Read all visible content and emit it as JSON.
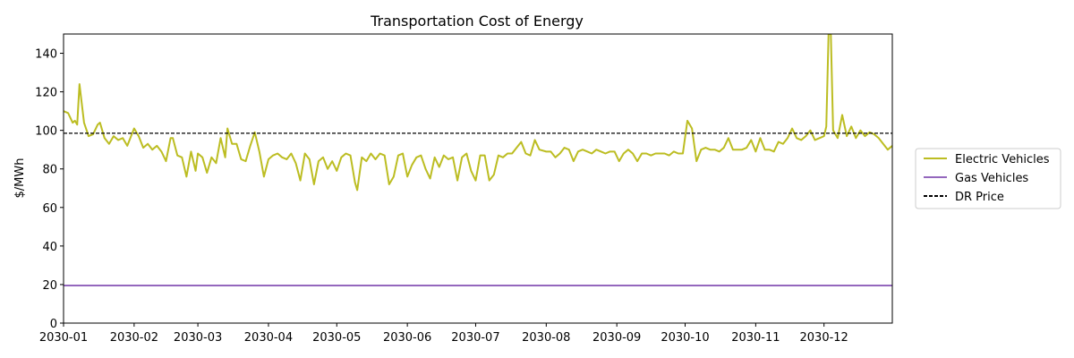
{
  "chart_data": {
    "type": "line",
    "title": "Transportation Cost of Energy",
    "xlabel": "",
    "ylabel": "$/MWh",
    "xlim": [
      "2030-01-01",
      "2030-12-31"
    ],
    "ylim": [
      0,
      150
    ],
    "yticks": [
      0,
      20,
      40,
      60,
      80,
      100,
      120,
      140
    ],
    "xticks": [
      "2030-01",
      "2030-02",
      "2030-03",
      "2030-04",
      "2030-05",
      "2030-06",
      "2030-07",
      "2030-08",
      "2030-09",
      "2030-10",
      "2030-11",
      "2030-12"
    ],
    "grid": false,
    "legend_position": "outside-right",
    "series": [
      {
        "name": "Electric Vehicles",
        "color": "#bcbd22",
        "style": "solid",
        "points": [
          [
            "2030-01-01",
            110
          ],
          [
            "2030-01-03",
            109
          ],
          [
            "2030-01-05",
            104
          ],
          [
            "2030-01-06",
            105
          ],
          [
            "2030-01-07",
            103
          ],
          [
            "2030-01-08",
            124
          ],
          [
            "2030-01-10",
            104
          ],
          [
            "2030-01-12",
            97
          ],
          [
            "2030-01-14",
            98
          ],
          [
            "2030-01-16",
            103
          ],
          [
            "2030-01-17",
            104
          ],
          [
            "2030-01-19",
            96
          ],
          [
            "2030-01-21",
            93
          ],
          [
            "2030-01-23",
            97
          ],
          [
            "2030-01-25",
            95
          ],
          [
            "2030-01-27",
            96
          ],
          [
            "2030-01-29",
            92
          ],
          [
            "2030-02-01",
            101
          ],
          [
            "2030-02-03",
            97
          ],
          [
            "2030-02-05",
            91
          ],
          [
            "2030-02-07",
            93
          ],
          [
            "2030-02-09",
            90
          ],
          [
            "2030-02-11",
            92
          ],
          [
            "2030-02-13",
            89
          ],
          [
            "2030-02-15",
            84
          ],
          [
            "2030-02-17",
            96
          ],
          [
            "2030-02-18",
            96
          ],
          [
            "2030-02-20",
            87
          ],
          [
            "2030-02-22",
            86
          ],
          [
            "2030-02-24",
            76
          ],
          [
            "2030-02-26",
            89
          ],
          [
            "2030-02-28",
            79
          ],
          [
            "2030-03-01",
            88
          ],
          [
            "2030-03-03",
            86
          ],
          [
            "2030-03-05",
            78
          ],
          [
            "2030-03-07",
            86
          ],
          [
            "2030-03-09",
            83
          ],
          [
            "2030-03-11",
            96
          ],
          [
            "2030-03-13",
            86
          ],
          [
            "2030-03-14",
            101
          ],
          [
            "2030-03-16",
            93
          ],
          [
            "2030-03-18",
            93
          ],
          [
            "2030-03-20",
            85
          ],
          [
            "2030-03-22",
            84
          ],
          [
            "2030-03-24",
            92
          ],
          [
            "2030-03-26",
            99
          ],
          [
            "2030-03-28",
            89
          ],
          [
            "2030-03-30",
            76
          ],
          [
            "2030-04-01",
            85
          ],
          [
            "2030-04-03",
            87
          ],
          [
            "2030-04-05",
            88
          ],
          [
            "2030-04-07",
            86
          ],
          [
            "2030-04-09",
            85
          ],
          [
            "2030-04-11",
            88
          ],
          [
            "2030-04-13",
            83
          ],
          [
            "2030-04-15",
            74
          ],
          [
            "2030-04-17",
            88
          ],
          [
            "2030-04-19",
            85
          ],
          [
            "2030-04-21",
            72
          ],
          [
            "2030-04-23",
            84
          ],
          [
            "2030-04-25",
            86
          ],
          [
            "2030-04-27",
            80
          ],
          [
            "2030-04-29",
            84
          ],
          [
            "2030-05-01",
            79
          ],
          [
            "2030-05-03",
            86
          ],
          [
            "2030-05-05",
            88
          ],
          [
            "2030-05-07",
            87
          ],
          [
            "2030-05-09",
            73
          ],
          [
            "2030-05-10",
            69
          ],
          [
            "2030-05-12",
            86
          ],
          [
            "2030-05-14",
            84
          ],
          [
            "2030-05-16",
            88
          ],
          [
            "2030-05-18",
            85
          ],
          [
            "2030-05-20",
            88
          ],
          [
            "2030-05-22",
            87
          ],
          [
            "2030-05-24",
            72
          ],
          [
            "2030-05-26",
            76
          ],
          [
            "2030-05-28",
            87
          ],
          [
            "2030-05-30",
            88
          ],
          [
            "2030-06-01",
            76
          ],
          [
            "2030-06-03",
            82
          ],
          [
            "2030-06-05",
            86
          ],
          [
            "2030-06-07",
            87
          ],
          [
            "2030-06-09",
            80
          ],
          [
            "2030-06-11",
            75
          ],
          [
            "2030-06-13",
            86
          ],
          [
            "2030-06-15",
            81
          ],
          [
            "2030-06-17",
            87
          ],
          [
            "2030-06-19",
            85
          ],
          [
            "2030-06-21",
            86
          ],
          [
            "2030-06-23",
            74
          ],
          [
            "2030-06-25",
            86
          ],
          [
            "2030-06-27",
            88
          ],
          [
            "2030-06-29",
            79
          ],
          [
            "2030-07-01",
            74
          ],
          [
            "2030-07-03",
            87
          ],
          [
            "2030-07-05",
            87
          ],
          [
            "2030-07-07",
            74
          ],
          [
            "2030-07-09",
            77
          ],
          [
            "2030-07-11",
            87
          ],
          [
            "2030-07-13",
            86
          ],
          [
            "2030-07-15",
            88
          ],
          [
            "2030-07-17",
            88
          ],
          [
            "2030-07-19",
            91
          ],
          [
            "2030-07-21",
            94
          ],
          [
            "2030-07-23",
            88
          ],
          [
            "2030-07-25",
            87
          ],
          [
            "2030-07-27",
            95
          ],
          [
            "2030-07-29",
            90
          ],
          [
            "2030-08-01",
            89
          ],
          [
            "2030-08-03",
            89
          ],
          [
            "2030-08-05",
            86
          ],
          [
            "2030-08-07",
            88
          ],
          [
            "2030-08-09",
            91
          ],
          [
            "2030-08-11",
            90
          ],
          [
            "2030-08-13",
            84
          ],
          [
            "2030-08-15",
            89
          ],
          [
            "2030-08-17",
            90
          ],
          [
            "2030-08-19",
            89
          ],
          [
            "2030-08-21",
            88
          ],
          [
            "2030-08-23",
            90
          ],
          [
            "2030-08-25",
            89
          ],
          [
            "2030-08-27",
            88
          ],
          [
            "2030-08-29",
            89
          ],
          [
            "2030-08-31",
            89
          ],
          [
            "2030-09-02",
            84
          ],
          [
            "2030-09-04",
            88
          ],
          [
            "2030-09-06",
            90
          ],
          [
            "2030-09-08",
            88
          ],
          [
            "2030-09-10",
            84
          ],
          [
            "2030-09-12",
            88
          ],
          [
            "2030-09-14",
            88
          ],
          [
            "2030-09-16",
            87
          ],
          [
            "2030-09-18",
            88
          ],
          [
            "2030-09-20",
            88
          ],
          [
            "2030-09-22",
            88
          ],
          [
            "2030-09-24",
            87
          ],
          [
            "2030-09-26",
            89
          ],
          [
            "2030-09-28",
            88
          ],
          [
            "2030-09-30",
            88
          ],
          [
            "2030-10-02",
            105
          ],
          [
            "2030-10-04",
            101
          ],
          [
            "2030-10-06",
            84
          ],
          [
            "2030-10-08",
            90
          ],
          [
            "2030-10-10",
            91
          ],
          [
            "2030-10-12",
            90
          ],
          [
            "2030-10-14",
            90
          ],
          [
            "2030-10-16",
            89
          ],
          [
            "2030-10-18",
            91
          ],
          [
            "2030-10-20",
            96
          ],
          [
            "2030-10-22",
            90
          ],
          [
            "2030-10-24",
            90
          ],
          [
            "2030-10-26",
            90
          ],
          [
            "2030-10-28",
            91
          ],
          [
            "2030-10-30",
            95
          ],
          [
            "2030-11-01",
            89
          ],
          [
            "2030-11-03",
            96
          ],
          [
            "2030-11-05",
            90
          ],
          [
            "2030-11-07",
            90
          ],
          [
            "2030-11-09",
            89
          ],
          [
            "2030-11-11",
            94
          ],
          [
            "2030-11-13",
            93
          ],
          [
            "2030-11-15",
            96
          ],
          [
            "2030-11-17",
            101
          ],
          [
            "2030-11-19",
            96
          ],
          [
            "2030-11-21",
            95
          ],
          [
            "2030-11-23",
            97
          ],
          [
            "2030-11-25",
            100
          ],
          [
            "2030-11-27",
            95
          ],
          [
            "2030-11-29",
            96
          ],
          [
            "2030-12-01",
            97
          ],
          [
            "2030-12-02",
            102
          ],
          [
            "2030-12-03",
            150
          ],
          [
            "2030-12-04",
            150
          ],
          [
            "2030-12-05",
            100
          ],
          [
            "2030-12-07",
            96
          ],
          [
            "2030-12-09",
            108
          ],
          [
            "2030-12-11",
            97
          ],
          [
            "2030-12-13",
            102
          ],
          [
            "2030-12-15",
            96
          ],
          [
            "2030-12-17",
            100
          ],
          [
            "2030-12-19",
            97
          ],
          [
            "2030-12-21",
            99
          ],
          [
            "2030-12-23",
            98
          ],
          [
            "2030-12-25",
            96
          ],
          [
            "2030-12-27",
            93
          ],
          [
            "2030-12-29",
            90
          ],
          [
            "2030-12-31",
            92
          ]
        ]
      },
      {
        "name": "Gas Vehicles",
        "color": "#9467bd",
        "style": "solid",
        "points": [
          [
            "2030-01-01",
            19.5
          ],
          [
            "2030-12-31",
            19.5
          ]
        ]
      },
      {
        "name": "DR Price",
        "color": "#000000",
        "style": "dashed",
        "points": [
          [
            "2030-01-01",
            98.5
          ],
          [
            "2030-12-31",
            98.5
          ]
        ]
      }
    ],
    "reference_lines": [
      {
        "y": 19.5,
        "color": "#000000",
        "style": "dashed"
      }
    ]
  }
}
